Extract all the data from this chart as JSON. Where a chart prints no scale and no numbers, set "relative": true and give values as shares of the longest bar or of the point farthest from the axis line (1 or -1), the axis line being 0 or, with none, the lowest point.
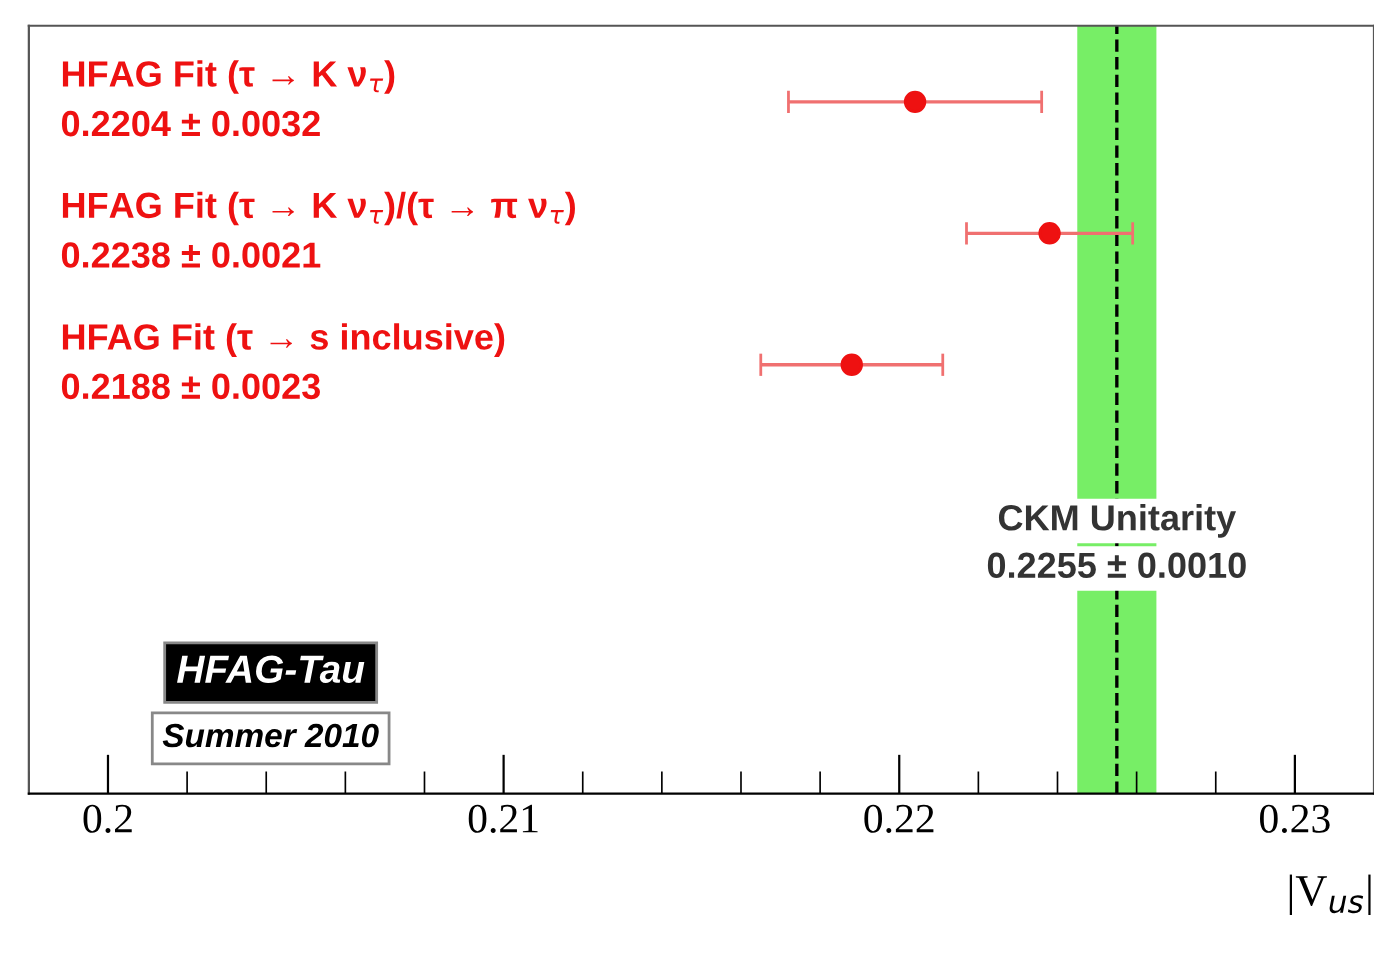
{
  "chart_data": {
    "type": "scatter",
    "xlabel": "|V$_{us}$|",
    "x": [
      0.2204,
      0.2238,
      0.2188
    ],
    "values": [
      1,
      0.81,
      0.62
    ],
    "relative": true,
    "xerrors": [
      0.0032,
      0.0021,
      0.0023
    ],
    "color": "#ee1111",
    "marker": "circle",
    "xlim": [
      0.198,
      0.232
    ],
    "xticks": [
      0.2,
      0.21,
      0.22,
      0.23
    ],
    "bands": [
      {
        "axis": "x",
        "from": 0.2245,
        "to": 0.2265,
        "label": "CKM Unitarity",
        "color": "#77ee66"
      }
    ],
    "ref_lines": [
      {
        "axis": "x",
        "value": 0.2255,
        "label": "0.2255 ± 0.0010",
        "color": "#000000",
        "line_style": "dashed"
      }
    ],
    "annotations": [
      "HFAG Fit (τ → K ν$_{τ}$)\n0.2204 ± 0.0032",
      "HFAG Fit (τ → K ν$_{τ}$)/(τ → π ν$_{τ}$)\n0.2238 ± 0.0021",
      "HFAG Fit (τ → s inclusive)\n0.2188 ± 0.0023",
      "HFAG-Tau",
      "Summer 2010"
    ],
    "grid": false,
    "legend": false,
    "tick_labels": "x"
  }
}
